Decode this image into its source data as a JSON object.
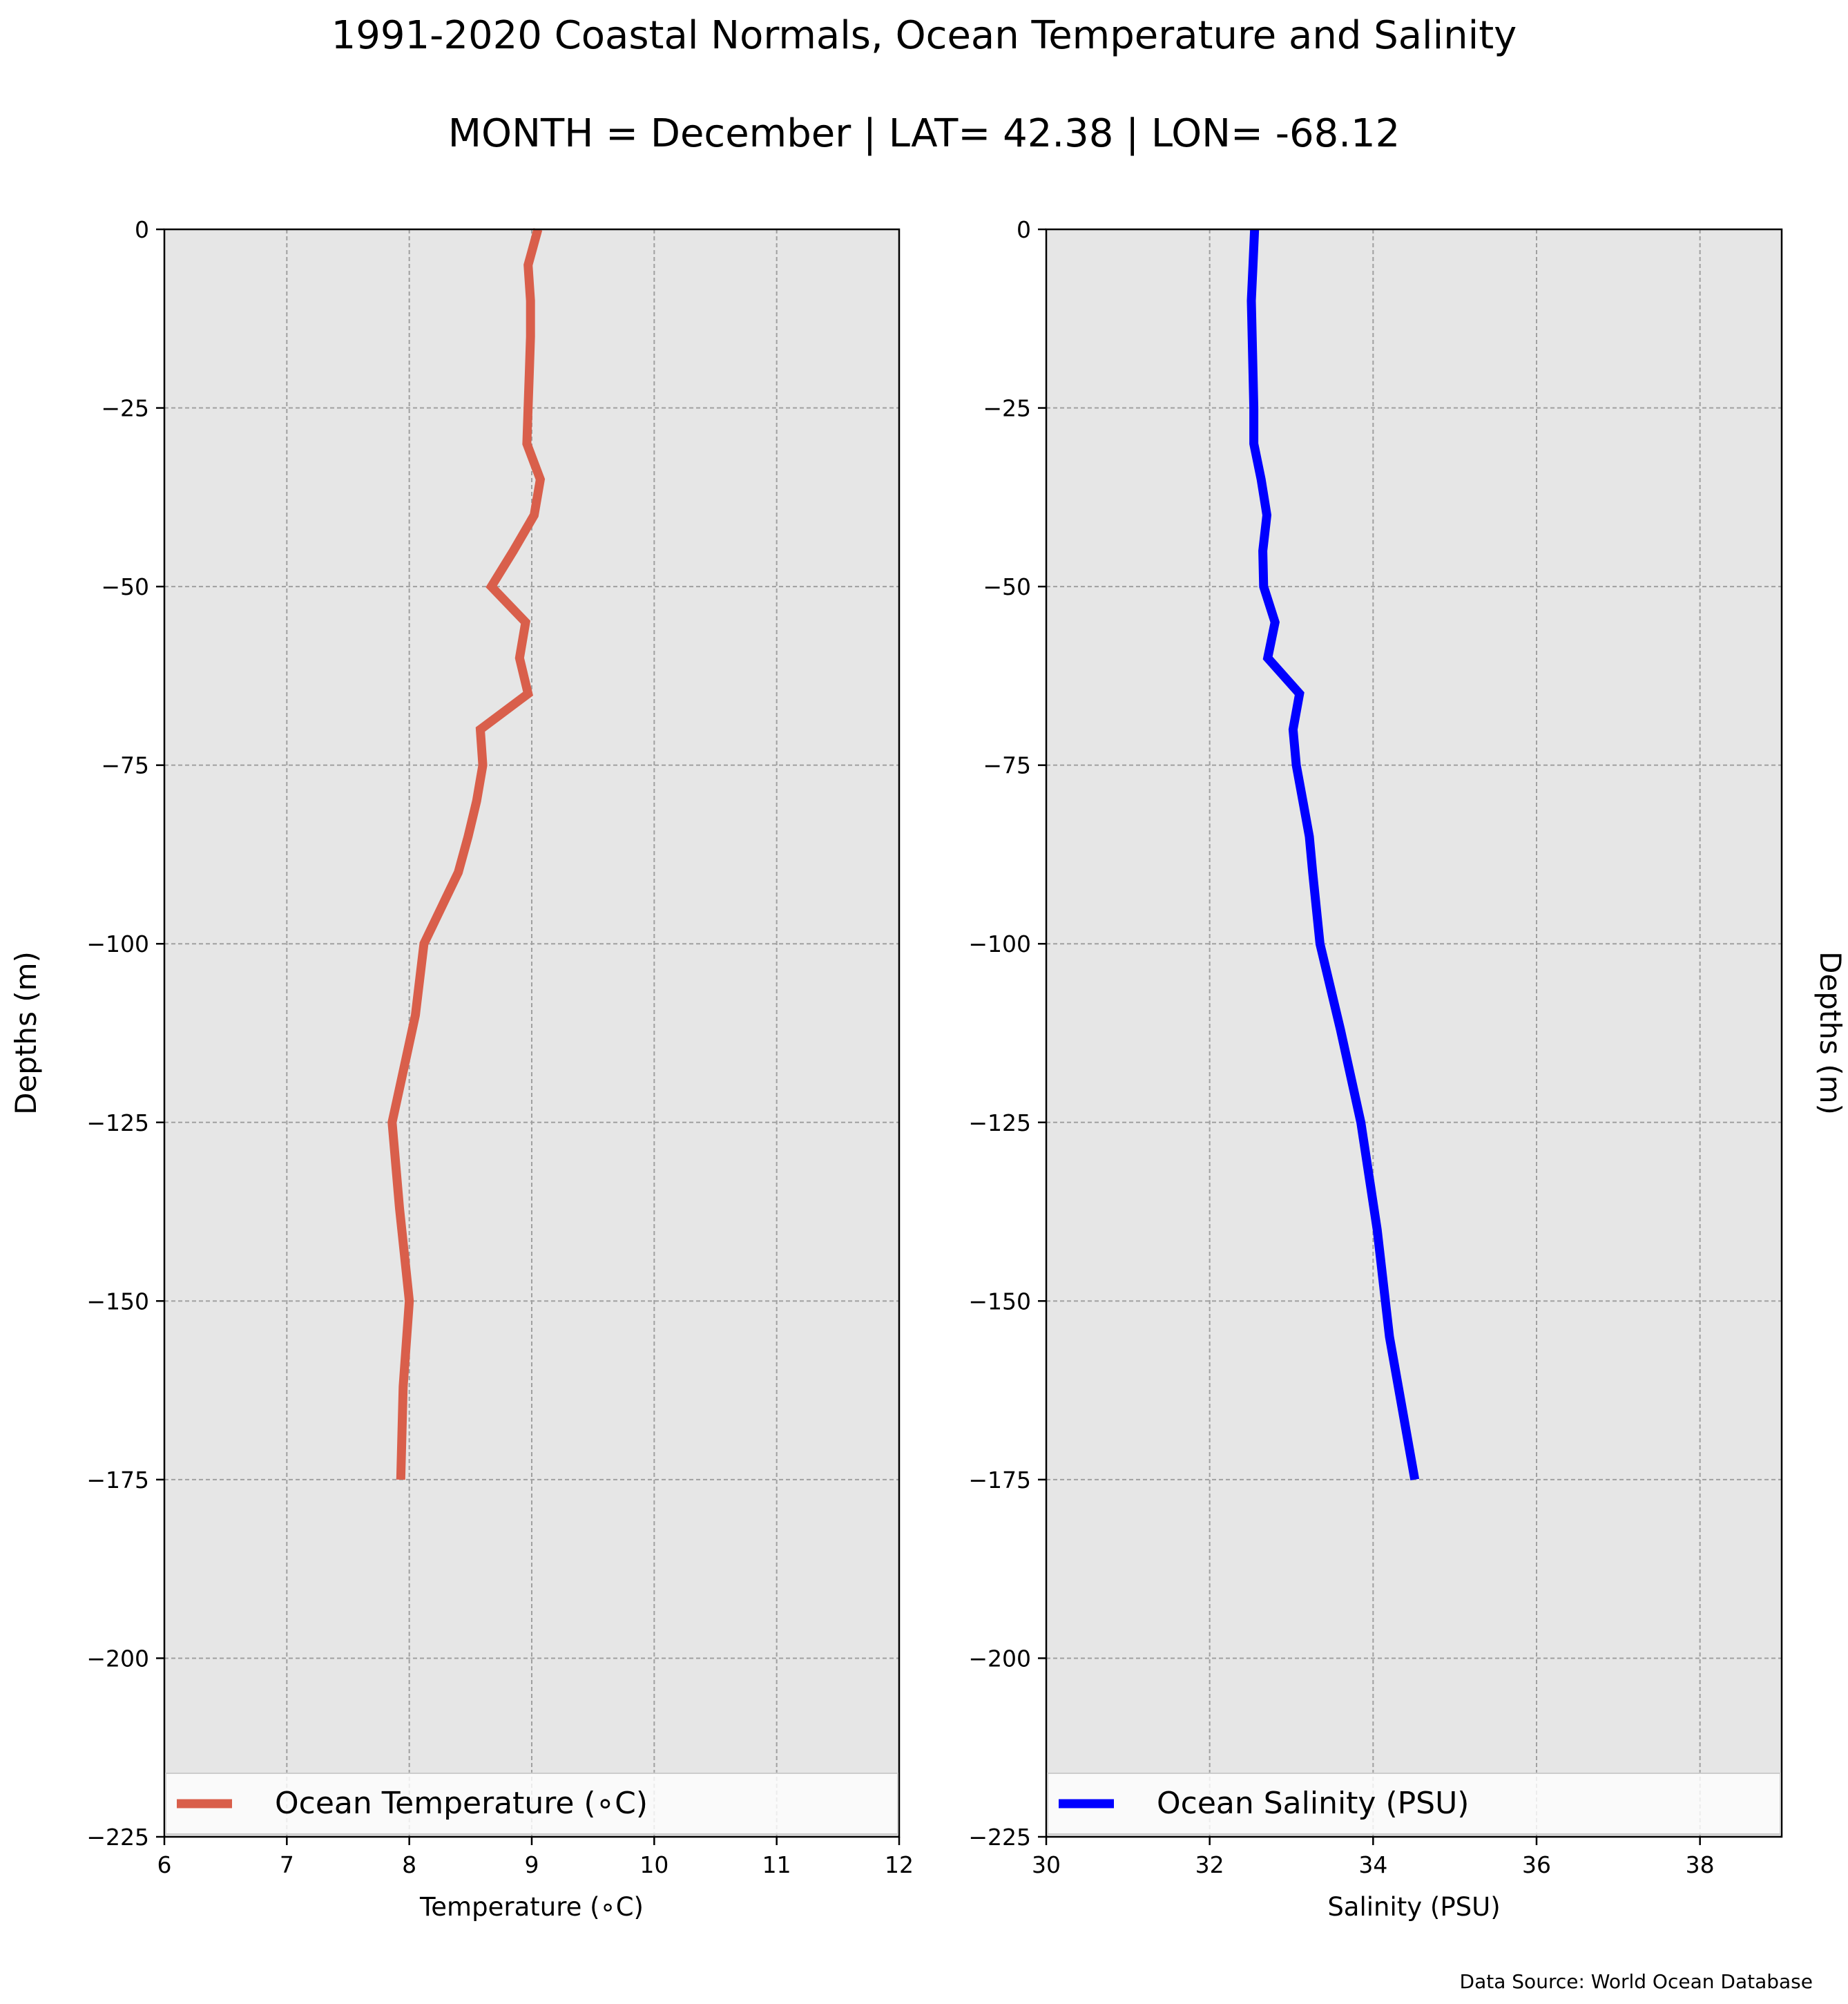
{
  "figure": {
    "title": "1991-2020 Coastal Normals, Ocean Temperature and Salinity",
    "subtitle": "MONTH = December | LAT= 42.38 | LON= -68.12",
    "source": "Data Source: World Ocean Database"
  },
  "chart_data": [
    {
      "type": "line",
      "xlabel": "Temperature (∘C)",
      "ylabel": "Depths (m)",
      "xlim": [
        6,
        12
      ],
      "ylim": [
        -225,
        0
      ],
      "xticks": [
        "6",
        "7",
        "8",
        "9",
        "10",
        "11",
        "12"
      ],
      "yticks": [
        "0",
        "−25",
        "−50",
        "−75",
        "−100",
        "−125",
        "−150",
        "−175",
        "−200",
        "−225"
      ],
      "grid": true,
      "legend_position": "bottom",
      "series": [
        {
          "name": "Ocean Temperature (∘C)",
          "color": "#d95f4b",
          "x": [
            9.05,
            8.97,
            8.99,
            8.99,
            8.98,
            8.97,
            8.96,
            9.07,
            9.02,
            8.85,
            8.67,
            8.95,
            8.9,
            8.97,
            8.58,
            8.6,
            8.55,
            8.48,
            8.4,
            8.12,
            8.05,
            7.86,
            7.92,
            8.0,
            7.95,
            7.93
          ],
          "y": [
            0,
            -5,
            -10,
            -15,
            -20,
            -25,
            -30,
            -35,
            -40,
            -45,
            -50,
            -55,
            -60,
            -65,
            -70,
            -75,
            -80,
            -85,
            -90,
            -100,
            -110,
            -125,
            -137,
            -150,
            -162,
            -175
          ]
        }
      ]
    },
    {
      "type": "line",
      "xlabel": "Salinity (PSU)",
      "ylabel": "Depths (m)",
      "xlim": [
        30,
        39
      ],
      "ylim": [
        -225,
        0
      ],
      "xticks": [
        "30",
        "32",
        "34",
        "36",
        "38"
      ],
      "yticks": [
        "0",
        "−25",
        "−50",
        "−75",
        "−100",
        "−125",
        "−150",
        "−175",
        "−200",
        "−225"
      ],
      "grid": true,
      "legend_position": "bottom",
      "series": [
        {
          "name": "Ocean Salinity (PSU)",
          "color": "#0000ff",
          "x": [
            32.55,
            32.53,
            32.51,
            32.52,
            32.53,
            32.54,
            32.54,
            32.63,
            32.7,
            32.65,
            32.66,
            32.8,
            32.71,
            33.1,
            33.02,
            33.06,
            33.14,
            33.22,
            33.26,
            33.35,
            33.6,
            33.85,
            34.05,
            34.2,
            34.51
          ],
          "y": [
            0,
            -5,
            -10,
            -15,
            -20,
            -25,
            -30,
            -35,
            -40,
            -45,
            -50,
            -55,
            -60,
            -65,
            -70,
            -75,
            -80,
            -85,
            -90,
            -100,
            -112,
            -125,
            -140,
            -155,
            -175
          ]
        }
      ]
    }
  ]
}
